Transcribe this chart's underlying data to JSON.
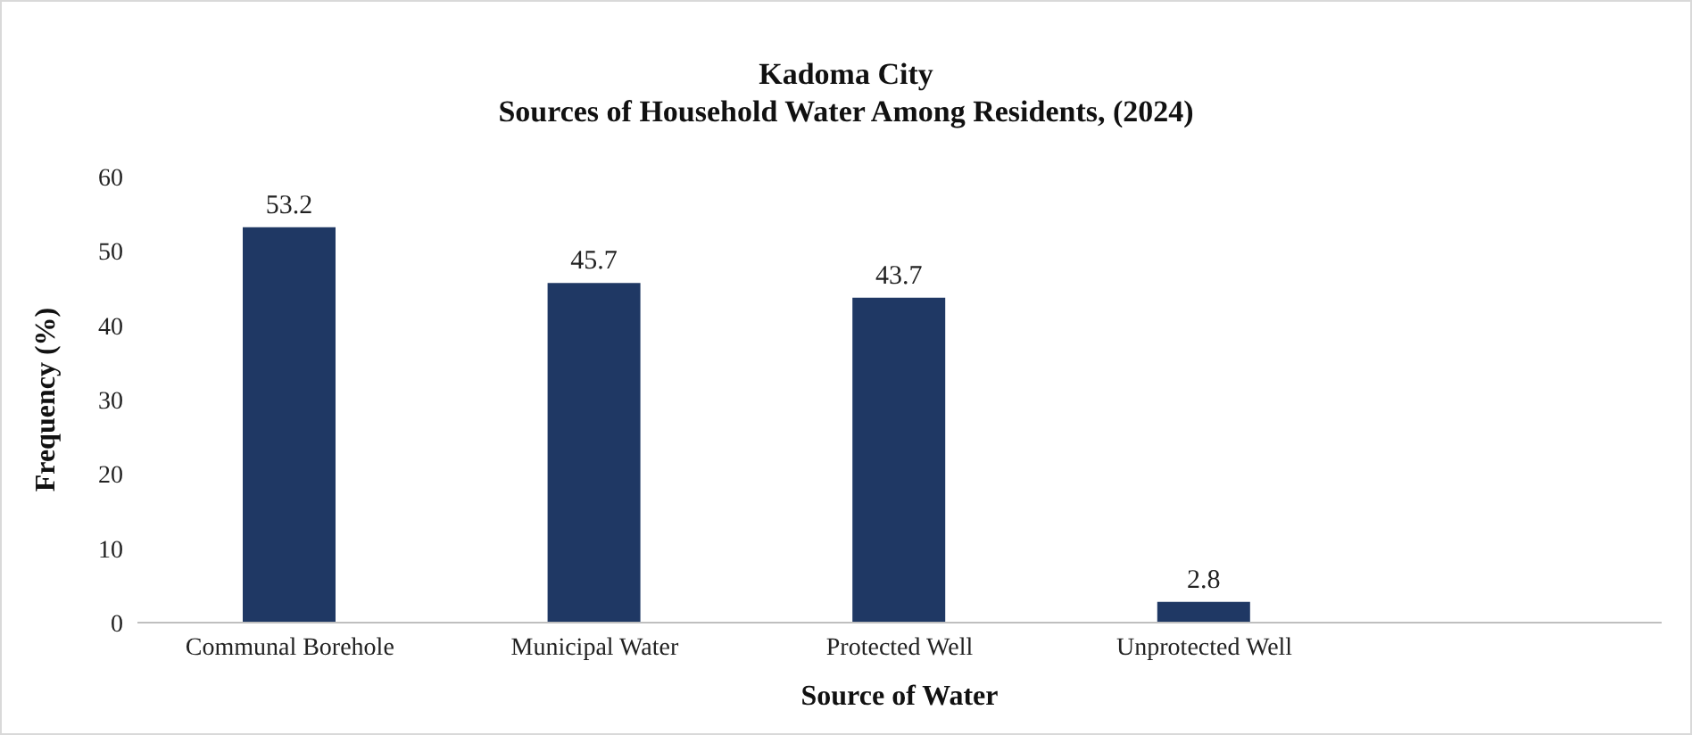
{
  "chart_data": {
    "type": "bar",
    "title": "Kadoma City",
    "subtitle": "Sources of Household Water Among Residents, (2024)",
    "xlabel": "Source of Water",
    "ylabel": "Frequency (%)",
    "categories": [
      "Communal Borehole",
      "Municipal Water",
      "Protected Well",
      "Unprotected Well",
      null
    ],
    "values": [
      53.2,
      45.7,
      43.7,
      2.8,
      null
    ],
    "color": "#1f3864",
    "ylim": [
      0,
      60
    ],
    "yticks": [
      0,
      10,
      20,
      30,
      40,
      50,
      60
    ],
    "grid": false,
    "data_labels": true
  }
}
